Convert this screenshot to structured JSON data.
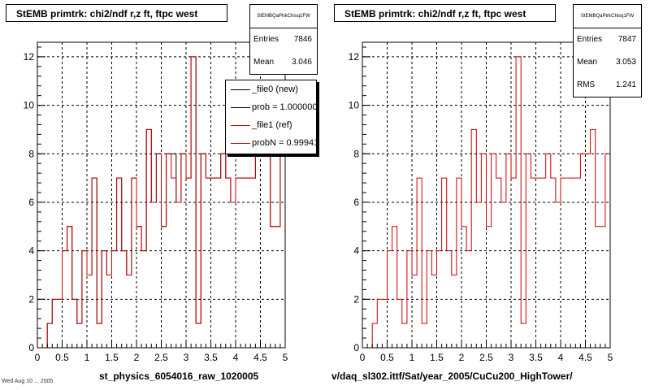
{
  "chart_data": [
    {
      "type": "histogram",
      "title": "StEMB primtrk: chi2/ndf r,z ft, ftpc west",
      "xlabel": "st_physics_6054016_raw_1020005",
      "xlim": [
        0,
        5
      ],
      "ylim": [
        0,
        12.6
      ],
      "xticks": [
        "0",
        "0.5",
        "1",
        "1.5",
        "2",
        "2.5",
        "3",
        "3.5",
        "4",
        "4.5",
        "5"
      ],
      "yticks": [
        "0",
        "2",
        "4",
        "6",
        "8",
        "10",
        "12"
      ],
      "grid": true,
      "bin_width": 0.1,
      "series": [
        {
          "name": "_file0 (new)",
          "color": "#000000",
          "x": [
            0,
            0.1,
            0.2,
            0.3,
            0.4,
            0.5,
            0.6,
            0.7,
            0.8,
            0.9,
            1.0,
            1.1,
            1.2,
            1.3,
            1.4,
            1.5,
            1.6,
            1.7,
            1.8,
            1.9,
            2.0,
            2.1,
            2.2,
            2.3,
            2.4,
            2.5,
            2.6,
            2.7,
            2.8,
            2.9,
            3.0,
            3.1,
            3.2,
            3.3,
            3.4,
            3.5,
            3.6,
            3.7,
            3.8,
            3.9,
            4.0,
            4.1,
            4.2,
            4.3,
            4.4,
            4.5,
            4.6,
            4.7,
            4.8,
            4.9
          ],
          "values": [
            0,
            0,
            1,
            2,
            2,
            4,
            5,
            2,
            1,
            4,
            3,
            7,
            1,
            4,
            3,
            4,
            7,
            4,
            3,
            7,
            5,
            4,
            9,
            6,
            8,
            5,
            8,
            8,
            6,
            8,
            7,
            12,
            1,
            8,
            7,
            7,
            7,
            8,
            7,
            6,
            7,
            7,
            7,
            7,
            8,
            8,
            9,
            5,
            5,
            8
          ]
        },
        {
          "name": "_file1 (ref)",
          "color": "#cc0000",
          "x": [
            0,
            0.1,
            0.2,
            0.3,
            0.4,
            0.5,
            0.6,
            0.7,
            0.8,
            0.9,
            1.0,
            1.1,
            1.2,
            1.3,
            1.4,
            1.5,
            1.6,
            1.7,
            1.8,
            1.9,
            2.0,
            2.1,
            2.2,
            2.3,
            2.4,
            2.5,
            2.6,
            2.7,
            2.8,
            2.9,
            3.0,
            3.1,
            3.2,
            3.3,
            3.4,
            3.5,
            3.6,
            3.7,
            3.8,
            3.9,
            4.0,
            4.1,
            4.2,
            4.3,
            4.4,
            4.5,
            4.6,
            4.7,
            4.8,
            4.9
          ],
          "values": [
            0,
            0,
            1,
            2,
            2,
            4,
            5,
            2,
            1,
            4,
            3,
            7,
            1,
            4,
            3,
            4,
            7,
            4,
            3,
            7,
            5,
            4,
            9,
            6,
            8,
            5,
            8,
            7,
            6,
            8,
            7,
            12,
            1,
            8,
            7,
            7,
            7,
            8,
            7,
            6,
            7,
            7,
            7,
            7,
            8,
            8,
            9,
            5,
            5,
            8
          ]
        }
      ],
      "stats": {
        "name": "StEMBQaPtrkChisq1FW",
        "entries": "7846",
        "mean": "3.046"
      },
      "legend": {
        "entries": [
          {
            "label": "_file0 (new)",
            "color": "#000000"
          },
          {
            "label": "prob = 1.000000",
            "color": "#000000"
          },
          {
            "label": "_file1 (ref)",
            "color": "#cc0000"
          },
          {
            "label": "probN = 0.999410",
            "color": "#cc0000"
          }
        ]
      }
    },
    {
      "type": "histogram",
      "title": "StEMB primtrk: chi2/ndf r,z ft, ftpc west",
      "xlabel": "v/daq_sl302.ittf/Sat/year_2005/CuCu200_HighTower/",
      "xlim": [
        0,
        5
      ],
      "ylim": [
        0,
        12.6
      ],
      "xticks": [
        "0",
        "0.5",
        "1",
        "1.5",
        "2",
        "2.5",
        "3",
        "3.5",
        "4",
        "4.5",
        "5"
      ],
      "yticks": [
        "0",
        "2",
        "4",
        "6",
        "8",
        "10",
        "12"
      ],
      "grid": true,
      "bin_width": 0.1,
      "series": [
        {
          "name": "",
          "color": "#cc0000",
          "x": [
            0,
            0.1,
            0.2,
            0.3,
            0.4,
            0.5,
            0.6,
            0.7,
            0.8,
            0.9,
            1.0,
            1.1,
            1.2,
            1.3,
            1.4,
            1.5,
            1.6,
            1.7,
            1.8,
            1.9,
            2.0,
            2.1,
            2.2,
            2.3,
            2.4,
            2.5,
            2.6,
            2.7,
            2.8,
            2.9,
            3.0,
            3.1,
            3.2,
            3.3,
            3.4,
            3.5,
            3.6,
            3.7,
            3.8,
            3.9,
            4.0,
            4.1,
            4.2,
            4.3,
            4.4,
            4.5,
            4.6,
            4.7,
            4.8,
            4.9
          ],
          "values": [
            0,
            0,
            1,
            2,
            2,
            4,
            5,
            2,
            1,
            4,
            3,
            7,
            1,
            4,
            3,
            4,
            7,
            4,
            3,
            7,
            5,
            4,
            9,
            6,
            8,
            5,
            8,
            7,
            6,
            8,
            7,
            12,
            1,
            8,
            7,
            7,
            7,
            8,
            7,
            6,
            7,
            7,
            7,
            7,
            8,
            8,
            9,
            5,
            5,
            8
          ]
        }
      ],
      "stats": {
        "name": "StEMBQaPtrkChisq1FW",
        "entries": "7847",
        "mean": "3.053",
        "rms": "1.241"
      }
    }
  ],
  "footer": {
    "timestamp": "Wed Aug 10 ... 2005"
  },
  "labels": {
    "entries": "Entries",
    "mean": "Mean",
    "rms": "RMS"
  }
}
